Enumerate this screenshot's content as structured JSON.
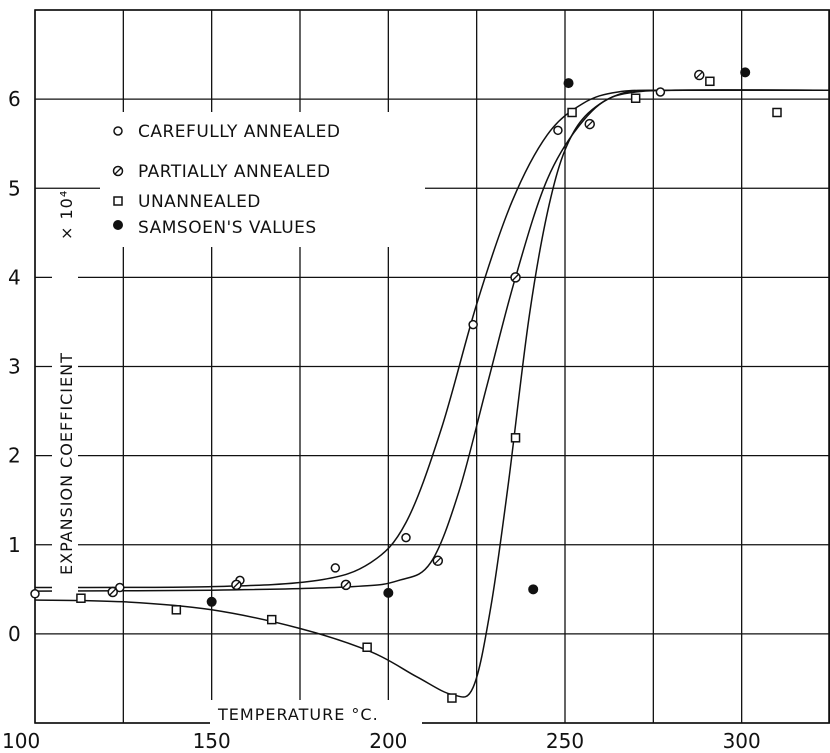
{
  "chart_data": {
    "type": "line",
    "xlabel": "Temperature °C",
    "ylabel": "Expansion Coefficient",
    "ylabel_suffix": "× 10⁴",
    "xlim": [
      100,
      325
    ],
    "ylim": [
      -1,
      7
    ],
    "x_ticks": [
      100,
      150,
      200,
      250,
      300
    ],
    "y_ticks": [
      0,
      1,
      2,
      3,
      4,
      5,
      6
    ],
    "grid": true,
    "legend_position": "upper-left",
    "series": [
      {
        "name": "Carefully Annealed",
        "marker": "open-circle",
        "points": [
          [
            100,
            0.45
          ],
          [
            124,
            0.52
          ],
          [
            158,
            0.6
          ],
          [
            185,
            0.74
          ],
          [
            205,
            1.08
          ],
          [
            224,
            3.47
          ],
          [
            248,
            5.65
          ],
          [
            277,
            6.08
          ]
        ]
      },
      {
        "name": "Partially Annealed",
        "marker": "hatched-circle",
        "points": [
          [
            122,
            0.47
          ],
          [
            157,
            0.55
          ],
          [
            188,
            0.55
          ],
          [
            214,
            0.82
          ],
          [
            236,
            4.0
          ],
          [
            257,
            5.72
          ],
          [
            288,
            6.27
          ]
        ]
      },
      {
        "name": "Unannealed",
        "marker": "open-square",
        "points": [
          [
            113,
            0.4
          ],
          [
            140,
            0.27
          ],
          [
            167,
            0.16
          ],
          [
            194,
            -0.15
          ],
          [
            218,
            -0.72
          ],
          [
            236,
            2.2
          ],
          [
            252,
            5.85
          ],
          [
            270,
            6.01
          ],
          [
            291,
            6.2
          ],
          [
            310,
            5.85
          ]
        ]
      },
      {
        "name": "Samsoen's Values",
        "marker": "filled-circle",
        "points": [
          [
            150,
            0.36
          ],
          [
            200,
            0.46
          ],
          [
            241,
            0.5
          ],
          [
            251,
            6.18
          ],
          [
            301,
            6.3
          ]
        ]
      }
    ],
    "curves": [
      {
        "name": "Carefully Annealed",
        "points": [
          [
            100,
            0.52
          ],
          [
            150,
            0.53
          ],
          [
            180,
            0.6
          ],
          [
            195,
            0.8
          ],
          [
            205,
            1.25
          ],
          [
            215,
            2.3
          ],
          [
            225,
            3.7
          ],
          [
            235,
            4.85
          ],
          [
            245,
            5.6
          ],
          [
            255,
            5.95
          ],
          [
            265,
            6.08
          ],
          [
            280,
            6.1
          ],
          [
            325,
            6.1
          ]
        ]
      },
      {
        "name": "Partially Annealed",
        "points": [
          [
            100,
            0.48
          ],
          [
            150,
            0.49
          ],
          [
            190,
            0.53
          ],
          [
            203,
            0.6
          ],
          [
            212,
            0.8
          ],
          [
            220,
            1.6
          ],
          [
            228,
            2.8
          ],
          [
            236,
            4.0
          ],
          [
            245,
            5.1
          ],
          [
            255,
            5.75
          ],
          [
            265,
            6.05
          ],
          [
            280,
            6.1
          ],
          [
            325,
            6.1
          ]
        ]
      },
      {
        "name": "Unannealed",
        "points": [
          [
            100,
            0.38
          ],
          [
            125,
            0.36
          ],
          [
            150,
            0.27
          ],
          [
            175,
            0.06
          ],
          [
            195,
            -0.2
          ],
          [
            208,
            -0.48
          ],
          [
            218,
            -0.68
          ],
          [
            224,
            -0.6
          ],
          [
            229,
            0.3
          ],
          [
            234,
            1.7
          ],
          [
            240,
            3.6
          ],
          [
            246,
            4.9
          ],
          [
            252,
            5.6
          ],
          [
            260,
            5.95
          ],
          [
            270,
            6.08
          ],
          [
            290,
            6.1
          ],
          [
            325,
            6.1
          ]
        ]
      }
    ],
    "legend_labels": {
      "careful": "CAREFULLY ANNEALED",
      "partial": "PARTIALLY ANNEALED",
      "unannealed": "UNANNEALED",
      "samsoen": "SAMSOEN'S VALUES"
    },
    "axis_text": {
      "x_title": "TEMPERATURE °C.",
      "y_title": "EXPANSION   COEFFICIENT",
      "y_suffix": "× 10⁴"
    }
  }
}
